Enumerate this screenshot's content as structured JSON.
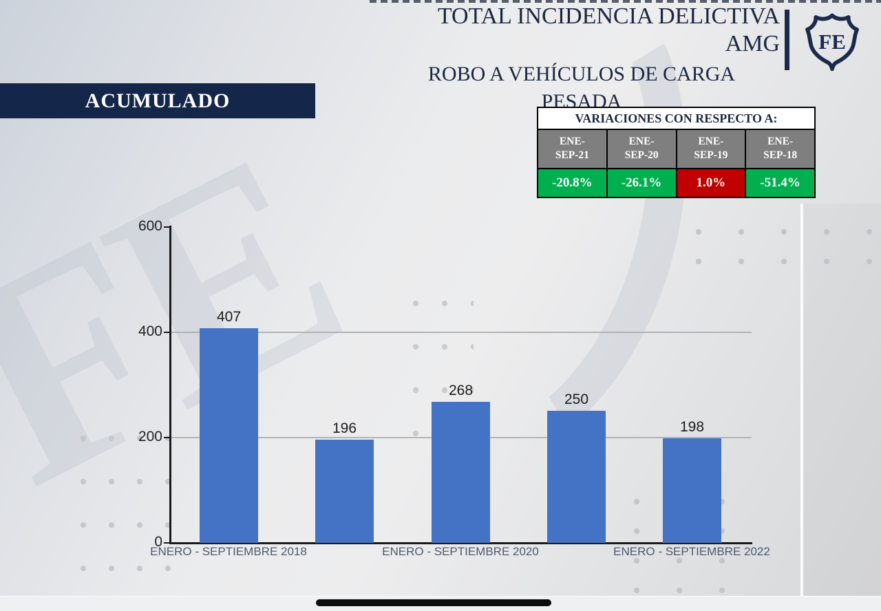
{
  "header": {
    "title_line1": "TOTAL INCIDENCIA DELICTIVA",
    "title_line2": "AMG",
    "subtitle_line1": "ROBO A VEHÍCULOS DE CARGA",
    "subtitle_line2": "PESADA",
    "logo_text": "FE",
    "title_color": "#1b2740"
  },
  "banner": {
    "label": "ACUMULADO",
    "background": "#14274a"
  },
  "variations": {
    "title": "VARIACIONES CON RESPECTO A:",
    "period_background": "#7f7f7f",
    "columns": [
      {
        "period_line1": "ENE-",
        "period_line2": "SEP-21",
        "value": "-20.8%",
        "value_color": "#00b050"
      },
      {
        "period_line1": "ENE-",
        "period_line2": "SEP-20",
        "value": "-26.1%",
        "value_color": "#00b050"
      },
      {
        "period_line1": "ENE-",
        "period_line2": "SEP-19",
        "value": "1.0%",
        "value_color": "#c00000"
      },
      {
        "period_line1": "ENE-",
        "period_line2": "SEP-18",
        "value": "-51.4%",
        "value_color": "#00b050"
      }
    ]
  },
  "chart_data": {
    "type": "bar",
    "title": "",
    "values": [
      407,
      196,
      268,
      250,
      198
    ],
    "data_labels": [
      "407",
      "196",
      "268",
      "250",
      "198"
    ],
    "x_tick_labels": [
      "ENERO - SEPTIEMBRE 2018",
      "ENERO - SEPTIEMBRE 2020",
      "ENERO - SEPTIEMBRE 2022"
    ],
    "y_ticks": [
      "0",
      "200",
      "400",
      "600"
    ],
    "ylim": [
      0,
      600
    ],
    "bar_color": "#4472c4",
    "gridlines": [
      200,
      400
    ],
    "grid": "horizontal",
    "legend_position": "none"
  }
}
